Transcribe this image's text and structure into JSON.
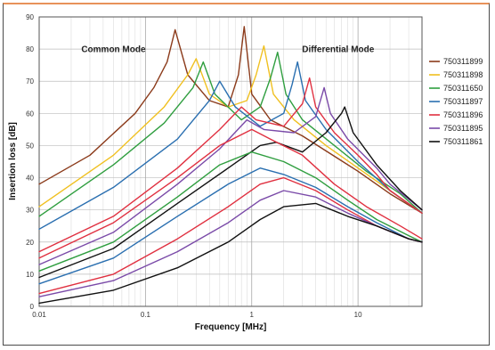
{
  "chart_data": {
    "type": "line",
    "xlabel": "Frequency [MHz]",
    "ylabel": "Insertion loss [dB]",
    "xscale": "log",
    "xlim": [
      0.01,
      40
    ],
    "ylim": [
      0,
      90
    ],
    "xticks": [
      {
        "value": 0.01,
        "label": "0.01"
      },
      {
        "value": 0.1,
        "label": "0.1"
      },
      {
        "value": 1,
        "label": "1"
      },
      {
        "value": 10,
        "label": "10"
      }
    ],
    "yticks": [
      0,
      10,
      20,
      30,
      40,
      50,
      60,
      70,
      80,
      90
    ],
    "grid": true,
    "legend": "right",
    "annotations": [
      {
        "text": "Common Mode",
        "x": 0.05,
        "y": 79
      },
      {
        "text": "Differential Mode",
        "x": 6.5,
        "y": 79
      }
    ],
    "series": [
      {
        "name": "750311899",
        "color": "#8b3a1a",
        "points": [
          [
            0.01,
            38
          ],
          [
            0.03,
            47
          ],
          [
            0.08,
            60
          ],
          [
            0.12,
            68
          ],
          [
            0.16,
            76
          ],
          [
            0.19,
            86
          ],
          [
            0.25,
            72
          ],
          [
            0.4,
            64
          ],
          [
            0.6,
            62
          ],
          [
            0.75,
            72
          ],
          [
            0.85,
            87
          ],
          [
            1.0,
            66
          ],
          [
            1.5,
            58
          ],
          [
            3,
            53
          ],
          [
            10,
            42
          ],
          [
            20,
            35
          ],
          [
            40,
            29
          ]
        ]
      },
      {
        "name": "750311898",
        "color": "#f0c020",
        "points": [
          [
            0.01,
            31
          ],
          [
            0.05,
            47
          ],
          [
            0.15,
            62
          ],
          [
            0.25,
            72
          ],
          [
            0.3,
            77
          ],
          [
            0.4,
            66
          ],
          [
            0.6,
            62
          ],
          [
            0.9,
            64
          ],
          [
            1.1,
            72
          ],
          [
            1.3,
            81
          ],
          [
            1.6,
            66
          ],
          [
            2.5,
            58
          ],
          [
            5,
            50
          ],
          [
            10,
            43
          ],
          [
            20,
            36
          ],
          [
            40,
            29
          ]
        ]
      },
      {
        "name": "750311650",
        "color": "#2f9e3f",
        "points": [
          [
            0.01,
            28
          ],
          [
            0.05,
            44
          ],
          [
            0.15,
            57
          ],
          [
            0.28,
            68
          ],
          [
            0.35,
            76
          ],
          [
            0.45,
            66
          ],
          [
            0.8,
            58
          ],
          [
            1.2,
            62
          ],
          [
            1.5,
            71
          ],
          [
            1.75,
            79
          ],
          [
            2.1,
            66
          ],
          [
            3,
            58
          ],
          [
            6,
            50
          ],
          [
            12,
            42
          ],
          [
            25,
            35
          ],
          [
            40,
            29
          ]
        ]
      },
      {
        "name": "750311897",
        "color": "#2a6fb0",
        "points": [
          [
            0.01,
            24
          ],
          [
            0.05,
            37
          ],
          [
            0.2,
            52
          ],
          [
            0.4,
            64
          ],
          [
            0.5,
            70
          ],
          [
            0.7,
            62
          ],
          [
            1.2,
            56
          ],
          [
            2,
            60
          ],
          [
            2.4,
            69
          ],
          [
            2.7,
            76
          ],
          [
            3.2,
            64
          ],
          [
            5,
            55
          ],
          [
            10,
            45
          ],
          [
            20,
            36
          ],
          [
            40,
            29
          ]
        ]
      },
      {
        "name": "750311896",
        "color": "#e03040",
        "points": [
          [
            0.01,
            17
          ],
          [
            0.05,
            28
          ],
          [
            0.2,
            43
          ],
          [
            0.5,
            55
          ],
          [
            0.8,
            62
          ],
          [
            1.1,
            58
          ],
          [
            2,
            56
          ],
          [
            3,
            63
          ],
          [
            3.5,
            71
          ],
          [
            4,
            62
          ],
          [
            6,
            54
          ],
          [
            10,
            47
          ],
          [
            15,
            41
          ],
          [
            20,
            36
          ],
          [
            40,
            29
          ]
        ]
      },
      {
        "name": "750311895",
        "color": "#7a4aa8",
        "points": [
          [
            0.01,
            13
          ],
          [
            0.05,
            23
          ],
          [
            0.2,
            38
          ],
          [
            0.5,
            49
          ],
          [
            0.9,
            58
          ],
          [
            1.3,
            55
          ],
          [
            2.5,
            54
          ],
          [
            4,
            59
          ],
          [
            4.8,
            68
          ],
          [
            5.5,
            60
          ],
          [
            8,
            52
          ],
          [
            15,
            43
          ],
          [
            20,
            38
          ],
          [
            40,
            30
          ]
        ]
      },
      {
        "name": "750311861",
        "color": "#111111",
        "points": [
          [
            0.01,
            9
          ],
          [
            0.05,
            18
          ],
          [
            0.2,
            32
          ],
          [
            0.6,
            43
          ],
          [
            1.2,
            50
          ],
          [
            1.7,
            51
          ],
          [
            3,
            48
          ],
          [
            5,
            54
          ],
          [
            7,
            60
          ],
          [
            7.5,
            62
          ],
          [
            9,
            54
          ],
          [
            15,
            44
          ],
          [
            25,
            36
          ],
          [
            40,
            30
          ]
        ]
      },
      {
        "color": "#e03040",
        "points": [
          [
            0.01,
            15
          ],
          [
            0.05,
            26
          ],
          [
            0.2,
            40
          ],
          [
            0.5,
            50
          ],
          [
            1.0,
            55
          ],
          [
            1.5,
            52
          ],
          [
            3,
            47
          ],
          [
            6,
            38
          ],
          [
            12,
            31
          ],
          [
            25,
            25
          ],
          [
            40,
            21
          ]
        ]
      },
      {
        "color": "#2f9e3f",
        "points": [
          [
            0.01,
            11
          ],
          [
            0.05,
            20
          ],
          [
            0.2,
            34
          ],
          [
            0.5,
            44
          ],
          [
            1.0,
            48
          ],
          [
            2,
            45
          ],
          [
            4,
            40
          ],
          [
            8,
            33
          ],
          [
            15,
            27
          ],
          [
            30,
            22
          ],
          [
            40,
            20
          ]
        ]
      },
      {
        "color": "#2a6fb0",
        "points": [
          [
            0.01,
            7
          ],
          [
            0.05,
            15
          ],
          [
            0.2,
            28
          ],
          [
            0.6,
            38
          ],
          [
            1.2,
            43
          ],
          [
            2,
            41
          ],
          [
            4,
            37
          ],
          [
            8,
            31
          ],
          [
            15,
            26
          ],
          [
            30,
            21
          ],
          [
            40,
            20
          ]
        ]
      },
      {
        "color": "#e03040",
        "points": [
          [
            0.01,
            4
          ],
          [
            0.05,
            10
          ],
          [
            0.2,
            21
          ],
          [
            0.6,
            31
          ],
          [
            1.2,
            38
          ],
          [
            2,
            40
          ],
          [
            4,
            36
          ],
          [
            8,
            30
          ],
          [
            15,
            25
          ],
          [
            30,
            21
          ],
          [
            40,
            20
          ]
        ]
      },
      {
        "color": "#7a4aa8",
        "points": [
          [
            0.01,
            3
          ],
          [
            0.05,
            8
          ],
          [
            0.2,
            17
          ],
          [
            0.6,
            26
          ],
          [
            1.2,
            33
          ],
          [
            2,
            36
          ],
          [
            4,
            34
          ],
          [
            8,
            29
          ],
          [
            15,
            25
          ],
          [
            30,
            21
          ],
          [
            40,
            20
          ]
        ]
      },
      {
        "color": "#111111",
        "points": [
          [
            0.01,
            1
          ],
          [
            0.05,
            5
          ],
          [
            0.2,
            12
          ],
          [
            0.6,
            20
          ],
          [
            1.2,
            27
          ],
          [
            2,
            31
          ],
          [
            4,
            32
          ],
          [
            8,
            28
          ],
          [
            15,
            25
          ],
          [
            30,
            21
          ],
          [
            40,
            20
          ]
        ]
      }
    ]
  }
}
